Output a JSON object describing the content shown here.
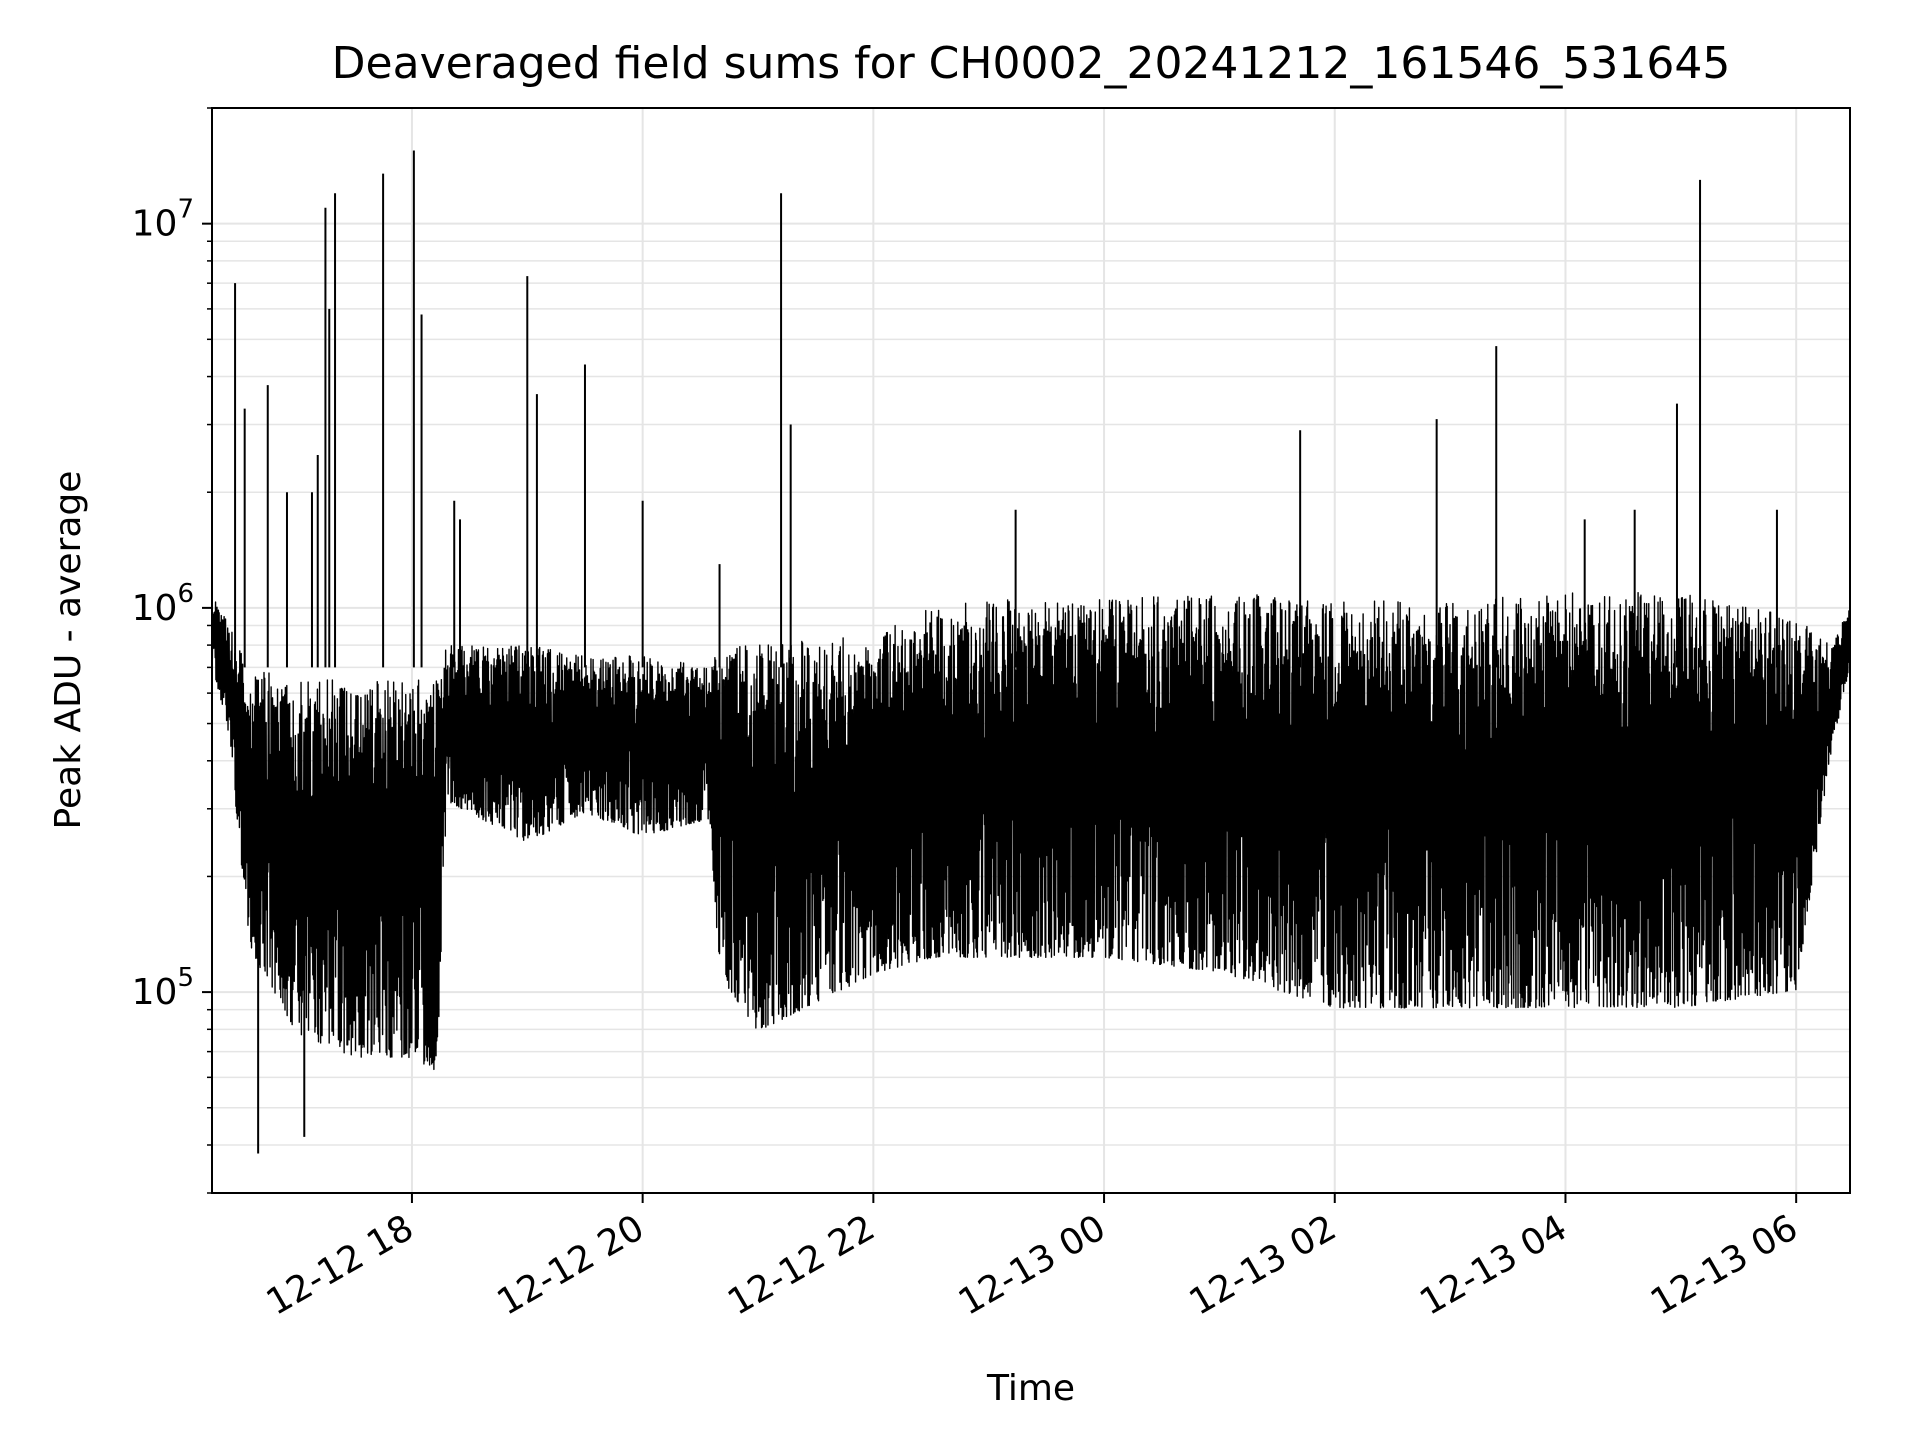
{
  "chart_data": {
    "type": "line",
    "title": "Deaveraged field sums for CH0002_20241212_161546_531645",
    "xlabel": "Time",
    "ylabel": "Peak ADU - average",
    "y_scale": "log",
    "grid": true,
    "line_color": "#000000",
    "grid_color": "#e5e5e5",
    "xlim": [
      "2024-12-12 16:16",
      "2024-12-13 06:28"
    ],
    "ylim": [
      30000,
      20000000
    ],
    "x_ticks": [
      {
        "value": "2024-12-12 18:00",
        "label": "12-12 18"
      },
      {
        "value": "2024-12-12 20:00",
        "label": "12-12 20"
      },
      {
        "value": "2024-12-12 22:00",
        "label": "12-12 22"
      },
      {
        "value": "2024-12-13 00:00",
        "label": "12-13 00"
      },
      {
        "value": "2024-12-13 02:00",
        "label": "12-13 02"
      },
      {
        "value": "2024-12-13 04:00",
        "label": "12-13 04"
      },
      {
        "value": "2024-12-13 06:00",
        "label": "12-13 06"
      }
    ],
    "y_ticks": [
      {
        "value": 100000,
        "base": "10",
        "exp": "5"
      },
      {
        "value": 1000000,
        "base": "10",
        "exp": "6"
      },
      {
        "value": 10000000,
        "base": "10",
        "exp": "7"
      }
    ],
    "series": [
      {
        "envelope": [
          {
            "x": "2024-12-12 16:16",
            "lo": 700000,
            "hi": 1100000
          },
          {
            "x": "2024-12-12 16:25",
            "lo": 450000,
            "hi": 900000
          },
          {
            "x": "2024-12-12 16:35",
            "lo": 120000,
            "hi": 700000
          },
          {
            "x": "2024-12-12 17:00",
            "lo": 70000,
            "hi": 650000
          },
          {
            "x": "2024-12-12 17:30",
            "lo": 60000,
            "hi": 650000
          },
          {
            "x": "2024-12-12 18:00",
            "lo": 60000,
            "hi": 650000
          },
          {
            "x": "2024-12-12 18:13",
            "lo": 55000,
            "hi": 650000
          },
          {
            "x": "2024-12-12 18:18",
            "lo": 300000,
            "hi": 800000
          },
          {
            "x": "2024-12-12 19:00",
            "lo": 230000,
            "hi": 800000
          },
          {
            "x": "2024-12-12 19:30",
            "lo": 280000,
            "hi": 750000
          },
          {
            "x": "2024-12-12 20:00",
            "lo": 240000,
            "hi": 750000
          },
          {
            "x": "2024-12-12 20:35",
            "lo": 270000,
            "hi": 700000
          },
          {
            "x": "2024-12-12 20:40",
            "lo": 100000,
            "hi": 800000
          },
          {
            "x": "2024-12-12 21:00",
            "lo": 70000,
            "hi": 800000
          },
          {
            "x": "2024-12-12 22:00",
            "lo": 100000,
            "hi": 850000
          },
          {
            "x": "2024-12-12 22:30",
            "lo": 110000,
            "hi": 1000000
          },
          {
            "x": "2024-12-12 23:00",
            "lo": 110000,
            "hi": 1050000
          },
          {
            "x": "2024-12-13 00:00",
            "lo": 110000,
            "hi": 1050000
          },
          {
            "x": "2024-12-13 01:00",
            "lo": 100000,
            "hi": 1100000
          },
          {
            "x": "2024-12-13 02:00",
            "lo": 80000,
            "hi": 1050000
          },
          {
            "x": "2024-12-13 03:00",
            "lo": 80000,
            "hi": 1050000
          },
          {
            "x": "2024-12-13 04:00",
            "lo": 80000,
            "hi": 1100000
          },
          {
            "x": "2024-12-13 05:00",
            "lo": 80000,
            "hi": 1100000
          },
          {
            "x": "2024-12-13 06:00",
            "lo": 90000,
            "hi": 950000
          },
          {
            "x": "2024-12-13 06:18",
            "lo": 400000,
            "hi": 800000
          },
          {
            "x": "2024-12-13 06:28",
            "lo": 700000,
            "hi": 1000000
          }
        ],
        "spikes": [
          {
            "x": "2024-12-12 16:28",
            "y": 7000000
          },
          {
            "x": "2024-12-12 16:33",
            "y": 3300000
          },
          {
            "x": "2024-12-12 16:40",
            "y": 38000
          },
          {
            "x": "2024-12-12 16:45",
            "y": 3800000
          },
          {
            "x": "2024-12-12 16:55",
            "y": 2000000
          },
          {
            "x": "2024-12-12 17:04",
            "y": 42000
          },
          {
            "x": "2024-12-12 17:08",
            "y": 2000000
          },
          {
            "x": "2024-12-12 17:11",
            "y": 2500000
          },
          {
            "x": "2024-12-12 17:15",
            "y": 11000000
          },
          {
            "x": "2024-12-12 17:17",
            "y": 6000000
          },
          {
            "x": "2024-12-12 17:20",
            "y": 12000000
          },
          {
            "x": "2024-12-12 17:45",
            "y": 13500000
          },
          {
            "x": "2024-12-12 18:01",
            "y": 15500000
          },
          {
            "x": "2024-12-12 18:05",
            "y": 5800000
          },
          {
            "x": "2024-12-12 18:22",
            "y": 1900000
          },
          {
            "x": "2024-12-12 18:25",
            "y": 1700000
          },
          {
            "x": "2024-12-12 19:00",
            "y": 7300000
          },
          {
            "x": "2024-12-12 19:05",
            "y": 3600000
          },
          {
            "x": "2024-12-12 19:30",
            "y": 4300000
          },
          {
            "x": "2024-12-12 20:00",
            "y": 1900000
          },
          {
            "x": "2024-12-12 20:40",
            "y": 1300000
          },
          {
            "x": "2024-12-12 21:12",
            "y": 12000000
          },
          {
            "x": "2024-12-12 21:17",
            "y": 3000000
          },
          {
            "x": "2024-12-12 23:14",
            "y": 1800000
          },
          {
            "x": "2024-12-13 01:42",
            "y": 2900000
          },
          {
            "x": "2024-12-13 02:53",
            "y": 3100000
          },
          {
            "x": "2024-12-13 03:24",
            "y": 4800000
          },
          {
            "x": "2024-12-13 04:10",
            "y": 1700000
          },
          {
            "x": "2024-12-13 04:36",
            "y": 1800000
          },
          {
            "x": "2024-12-13 04:58",
            "y": 3400000
          },
          {
            "x": "2024-12-13 05:10",
            "y": 13000000
          },
          {
            "x": "2024-12-13 05:50",
            "y": 1800000
          }
        ]
      }
    ]
  }
}
